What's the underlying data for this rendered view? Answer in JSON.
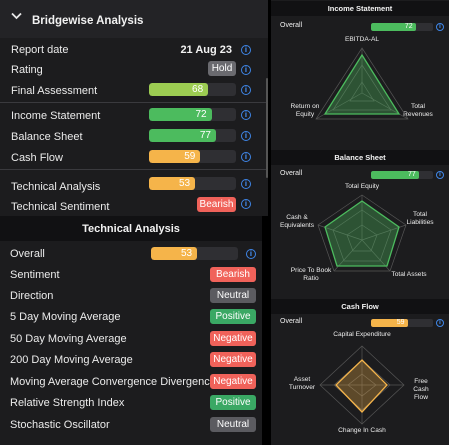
{
  "bridgewise": {
    "title": "Bridgewise Analysis",
    "rows": [
      {
        "label": "Report date",
        "value": "21 Aug 23"
      },
      {
        "label": "Rating",
        "tag": "Hold"
      },
      {
        "label": "Final Assessment",
        "score": 68,
        "score_label": "68"
      },
      {
        "label": "Income Statement",
        "score": 72,
        "score_label": "72"
      },
      {
        "label": "Balance Sheet",
        "score": 77,
        "score_label": "77"
      },
      {
        "label": "Cash Flow",
        "score": 59,
        "score_label": "59"
      },
      {
        "label": "Technical Analysis",
        "score": 53,
        "score_label": "53"
      },
      {
        "label": "Technical Sentiment",
        "tag": "Bearish"
      }
    ]
  },
  "technical": {
    "title": "Technical Analysis",
    "overall_label": "Overall",
    "overall_score": 53,
    "overall_score_label": "53",
    "rows": [
      {
        "label": "Sentiment",
        "tag": "Bearish"
      },
      {
        "label": "Direction",
        "tag": "Neutral"
      },
      {
        "label": "5 Day Moving Average",
        "tag": "Positive"
      },
      {
        "label": "50 Day Moving Average",
        "tag": "Negative"
      },
      {
        "label": "200 Day Moving Average",
        "tag": "Negative"
      },
      {
        "label": "Moving Average Convergence Divergence",
        "tag": "Negative"
      },
      {
        "label": "Relative Strength Index",
        "tag": "Positive"
      },
      {
        "label": "Stochastic Oscillator",
        "tag": "Neutral"
      }
    ]
  },
  "income_statement": {
    "title": "Income Statement",
    "overall_label": "Overall",
    "overall_score": 72,
    "overall_score_label": "72",
    "axes": [
      "EBITDA-AL",
      "Total Revenues",
      "Return on Equity"
    ]
  },
  "balance_sheet": {
    "title": "Balance Sheet",
    "overall_label": "Overall",
    "overall_score": 77,
    "overall_score_label": "77",
    "axes": [
      "Total Equity",
      "Total Liabilities",
      "Total Assets",
      "Price To Book Ratio",
      "Cash & Equivalents"
    ]
  },
  "cash_flow": {
    "title": "Cash Flow",
    "overall_label": "Overall",
    "overall_score": 59,
    "overall_score_label": "59",
    "axes": [
      "Capital Expenditure",
      "Free Cash Flow",
      "Change In Cash",
      "Asset Turnover"
    ]
  },
  "colors": {
    "green": "#4cbb5e",
    "lime": "#9ccc52",
    "orange": "#f5b44a",
    "red": "#f0625a",
    "gray": "#6e6e73",
    "info": "#3f86e8",
    "tag_green": "#3aa864",
    "tag_gray": "#5b5b60",
    "tag_red": "#f0625a"
  },
  "icons": {
    "collapse": "chevron-down-icon",
    "info": "info-icon"
  }
}
